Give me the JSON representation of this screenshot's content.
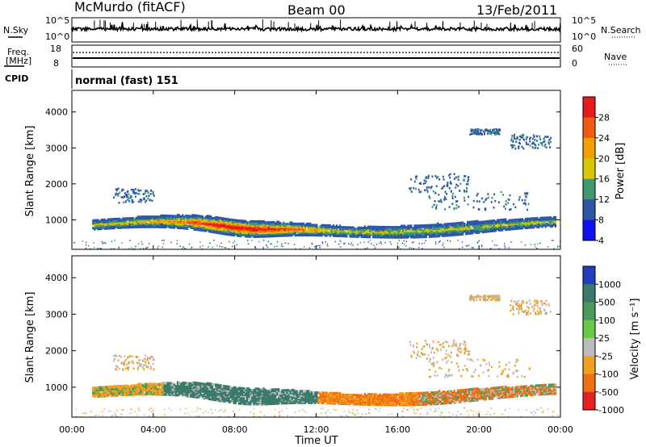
{
  "header": {
    "station": "McMurdo (fitACF)",
    "beam": "Beam 00",
    "date": "13/Feb/2011"
  },
  "noise_panel": {
    "left_label": "N.Sky",
    "left_ticks": [
      "10^5",
      "10^0"
    ],
    "right_ticks": [
      "10^5",
      "10^0"
    ],
    "right_label": "N.Search"
  },
  "freq_panel": {
    "left_label_1": "Freq.",
    "left_label_2": "[MHz]",
    "left_ticks": [
      "18",
      "8"
    ],
    "right_ticks": [
      "60",
      "0"
    ],
    "right_label": "Nave"
  },
  "cpid_panel": {
    "label": "CPID",
    "mode": "normal (fast) 151"
  },
  "axes": {
    "ylabel": "Slant Range [km]",
    "xlabel": "Time UT",
    "yticks": [
      "4000",
      "3000",
      "2000",
      "1000"
    ],
    "xticks": [
      "00:00",
      "04:00",
      "08:00",
      "12:00",
      "16:00",
      "20:00",
      "00:00"
    ]
  },
  "chart_data": [
    {
      "type": "heatmap",
      "title": "",
      "xlabel": "",
      "ylabel": "Slant Range [km]",
      "xlim": [
        0,
        24
      ],
      "ylim": [
        180,
        4600
      ],
      "colorbar": {
        "label": "Power [dB]",
        "ticks": [
          "28",
          "24",
          "20",
          "16",
          "12",
          "8",
          "4"
        ],
        "colors": [
          "#e61a1a",
          "#f25a10",
          "#f2a000",
          "#d9c800",
          "#3e9a6e",
          "#2e56a8",
          "#1010f0"
        ]
      }
    },
    {
      "type": "heatmap",
      "title": "",
      "xlabel": "Time UT",
      "ylabel": "Slant Range [km]",
      "xlim": [
        0,
        24
      ],
      "ylim": [
        180,
        4600
      ],
      "colorbar": {
        "label": "Velocity [m s⁻¹]",
        "ticks": [
          "1000",
          "500",
          "100",
          "25",
          "-25",
          "-100",
          "-500",
          "-1000"
        ],
        "colors": [
          "#1f3fbf",
          "#3a7a6a",
          "#4a9a60",
          "#66cc44",
          "#bbbbbb",
          "#f0a020",
          "#f07010",
          "#e62020"
        ]
      }
    }
  ]
}
